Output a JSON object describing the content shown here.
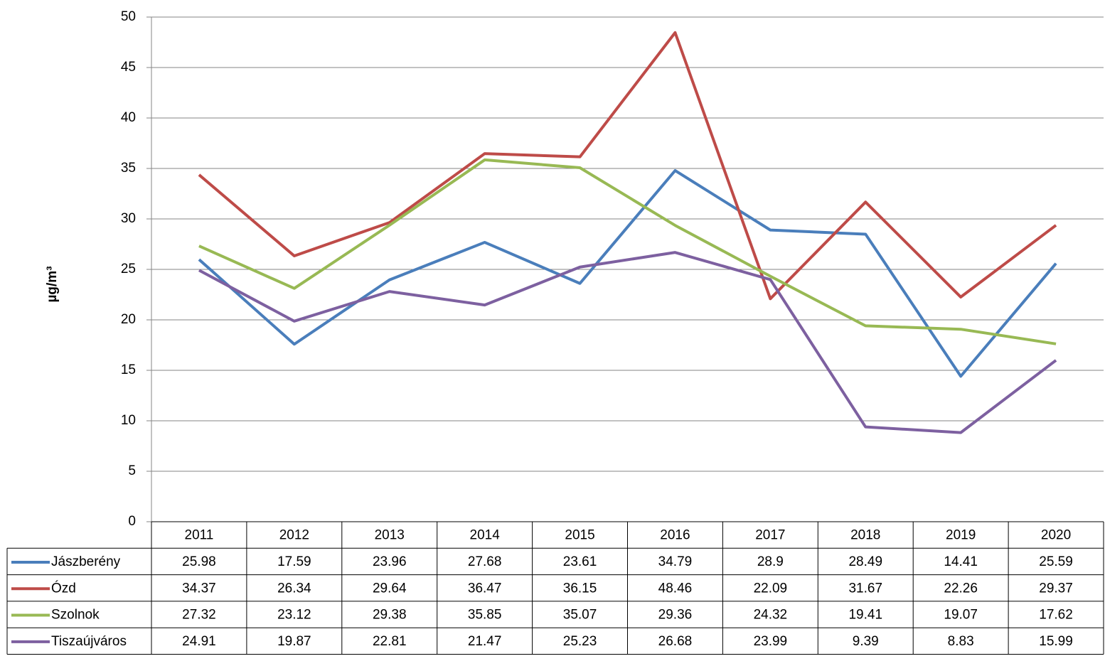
{
  "chart_data": {
    "type": "line",
    "y_label": "µg/m³",
    "categories": [
      "2011",
      "2012",
      "2013",
      "2014",
      "2015",
      "2016",
      "2017",
      "2018",
      "2019",
      "2020"
    ],
    "series": [
      {
        "name": "Jászberény",
        "color": "#4a7ebb",
        "values": [
          25.98,
          17.59,
          23.96,
          27.68,
          23.61,
          34.79,
          28.9,
          28.49,
          14.41,
          25.59
        ]
      },
      {
        "name": "Ózd",
        "color": "#be4b48",
        "values": [
          34.37,
          26.34,
          29.64,
          36.47,
          36.15,
          48.46,
          22.09,
          31.67,
          22.26,
          29.37
        ]
      },
      {
        "name": "Szolnok",
        "color": "#98b954",
        "values": [
          27.32,
          23.12,
          29.38,
          35.85,
          35.07,
          29.36,
          24.32,
          19.41,
          19.07,
          17.62
        ]
      },
      {
        "name": "Tiszaújváros",
        "color": "#7d60a0",
        "values": [
          24.91,
          19.87,
          22.81,
          21.47,
          25.23,
          26.68,
          23.99,
          9.39,
          8.83,
          15.99
        ]
      }
    ],
    "ylim": [
      0,
      50
    ],
    "yticks": [
      0,
      5,
      10,
      15,
      20,
      25,
      30,
      35,
      40,
      45,
      50
    ],
    "grid": true
  }
}
